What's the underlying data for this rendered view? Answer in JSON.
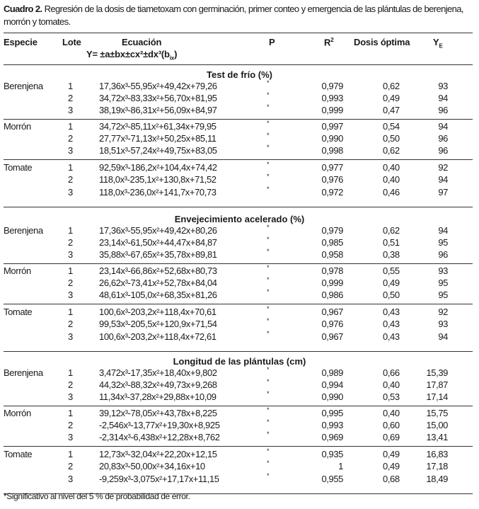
{
  "caption": {
    "label": "Cuadro 2.",
    "text": " Regresión de la dosis de tiametoxam con germinación, primer conteo y emergencia de las plántulas de berenjena, morrón y tomates."
  },
  "headers": {
    "especie": "Especie",
    "lote": "Lote",
    "ecuacion": "Ecuación",
    "formula": "Y= ±a±bx±cx²±dx³(b",
    "formula_sub": "ix",
    "formula_end": ")",
    "p": "P",
    "r2": "R",
    "r2_sup": "2",
    "dosis": "Dosis óptima",
    "ye": "Y",
    "ye_sub": "E"
  },
  "sections": [
    {
      "title": "Test de frío (%)",
      "groups": [
        {
          "especie": "Berenjena",
          "rows": [
            {
              "lote": "1",
              "eq": "17,36x³-55,95x²+49,42x+79,26",
              "p": "*",
              "r2": "0,979",
              "dosis": "0,62",
              "ye": "93"
            },
            {
              "lote": "2",
              "eq": "34,72x³-83,33x²+56,70x+81,95",
              "p": "*",
              "r2": "0,993",
              "dosis": "0,49",
              "ye": "94"
            },
            {
              "lote": "3",
              "eq": "38,19x³-86,31x²+56,09x+84,97",
              "p": "*",
              "r2": "0,999",
              "dosis": "0,47",
              "ye": "96"
            }
          ]
        },
        {
          "especie": "Morrón",
          "rows": [
            {
              "lote": "1",
              "eq": "34,72x³-85,11x²+61,34x+79,95",
              "p": "*",
              "r2": "0,997",
              "dosis": "0,54",
              "ye": "94"
            },
            {
              "lote": "2",
              "eq": "27,77x³-71,13x²+50,25x+85,11",
              "p": "*",
              "r2": "0,990",
              "dosis": "0,50",
              "ye": "96"
            },
            {
              "lote": "3",
              "eq": "18,51x³-57,24x²+49,75x+83,05",
              "p": "*",
              "r2": "0,998",
              "dosis": "0,62",
              "ye": "96"
            }
          ]
        },
        {
          "especie": "Tomate",
          "rows": [
            {
              "lote": "1",
              "eq": "92,59x³-186,2x²+104,4x+74,42",
              "p": "*",
              "r2": "0,977",
              "dosis": "0,40",
              "ye": "92"
            },
            {
              "lote": "2",
              "eq": "118,0x³-235,1x²+130,8x+71,52",
              "p": "*",
              "r2": "0,976",
              "dosis": "0,40",
              "ye": "94"
            },
            {
              "lote": "3",
              "eq": "118,0x³-236,0x²+141,7x+70,73",
              "p": "*",
              "r2": "0,972",
              "dosis": "0,46",
              "ye": "97"
            }
          ]
        }
      ]
    },
    {
      "title": "Envejecimiento acelerado (%)",
      "groups": [
        {
          "especie": "Berenjena",
          "rows": [
            {
              "lote": "1",
              "eq": "17,36x³-55,95x²+49,42x+80,26",
              "p": "*",
              "r2": "0,979",
              "dosis": "0,62",
              "ye": "94"
            },
            {
              "lote": "2",
              "eq": "23,14x³-61,50x²+44,47x+84,87",
              "p": "*",
              "r2": "0,985",
              "dosis": "0,51",
              "ye": "95"
            },
            {
              "lote": "3",
              "eq": "35,88x³-67,65x²+35,78x+89,81",
              "p": "*",
              "r2": "0,958",
              "dosis": "0,38",
              "ye": "96"
            }
          ]
        },
        {
          "especie": "Morrón",
          "rows": [
            {
              "lote": "1",
              "eq": "23,14x³-66,86x²+52,68x+80,73",
              "p": "*",
              "r2": "0,978",
              "dosis": "0,55",
              "ye": "93"
            },
            {
              "lote": "2",
              "eq": "26,62x³-73,41x²+52,78x+84,04",
              "p": "*",
              "r2": "0,999",
              "dosis": "0,49",
              "ye": "95"
            },
            {
              "lote": "3",
              "eq": "48,61x³-105,0x²+68,35x+81,26",
              "p": "*",
              "r2": "0,986",
              "dosis": "0,50",
              "ye": "95"
            }
          ]
        },
        {
          "especie": "Tomate",
          "rows": [
            {
              "lote": "1",
              "eq": "100,6x³-203,2x²+118,4x+70,61",
              "p": "*",
              "r2": "0,967",
              "dosis": "0,43",
              "ye": "92"
            },
            {
              "lote": "2",
              "eq": "99,53x³-205,5x²+120,9x+71,54",
              "p": "*",
              "r2": "0,976",
              "dosis": "0,43",
              "ye": "93"
            },
            {
              "lote": "3",
              "eq": "100,6x³-203,2x²+118,4x+72,61",
              "p": "*",
              "r2": "0,967",
              "dosis": "0,43",
              "ye": "94"
            }
          ]
        }
      ]
    },
    {
      "title": "Longitud de las plántulas (cm)",
      "groups": [
        {
          "especie": "Berenjena",
          "rows": [
            {
              "lote": "1",
              "eq": "3,472x³-17,35x²+18,40x+9,802",
              "p": "*",
              "r2": "0,989",
              "dosis": "0,66",
              "ye": "15,39"
            },
            {
              "lote": "2",
              "eq": "44,32x³-88,32x²+49,73x+9,268",
              "p": "*",
              "r2": "0,994",
              "dosis": "0,40",
              "ye": "17,87"
            },
            {
              "lote": "3",
              "eq": "11,34x³-37,28x²+29,88x+10,09",
              "p": "*",
              "r2": "0,990",
              "dosis": "0,53",
              "ye": "17,14"
            }
          ]
        },
        {
          "especie": "Morrón",
          "rows": [
            {
              "lote": "1",
              "eq": "39,12x³-78,05x²+43,78x+8,225",
              "p": "*",
              "r2": "0,995",
              "dosis": "0,40",
              "ye": "15,75"
            },
            {
              "lote": "2",
              "eq": "-2,546x³-13,77x²+19,30x+8,925",
              "p": "*",
              "r2": "0,993",
              "dosis": "0,60",
              "ye": "15,00"
            },
            {
              "lote": "3",
              "eq": "-2,314x³-6,438x²+12,28x+8,762",
              "p": "*",
              "r2": "0,969",
              "dosis": "0,69",
              "ye": "13,41"
            }
          ]
        },
        {
          "especie": "Tomate",
          "rows": [
            {
              "lote": "1",
              "eq": "12,73x³-32,04x²+22,20x+12,15",
              "p": "*",
              "r2": "0,935",
              "dosis": "0,49",
              "ye": "16,83"
            },
            {
              "lote": "2",
              "eq": "20,83x³-50,00x²+34,16x+10",
              "p": "*",
              "r2": "1",
              "dosis": "0,49",
              "ye": "17,18"
            },
            {
              "lote": "3",
              "eq": "-9,259x³-3,075x²+17,17x+11,15",
              "p": "*",
              "r2": "0,955",
              "dosis": "0,68",
              "ye": "18,49"
            }
          ]
        }
      ]
    }
  ],
  "footnote": "*Significativo al nivel del 5 % de probabilidad de error."
}
